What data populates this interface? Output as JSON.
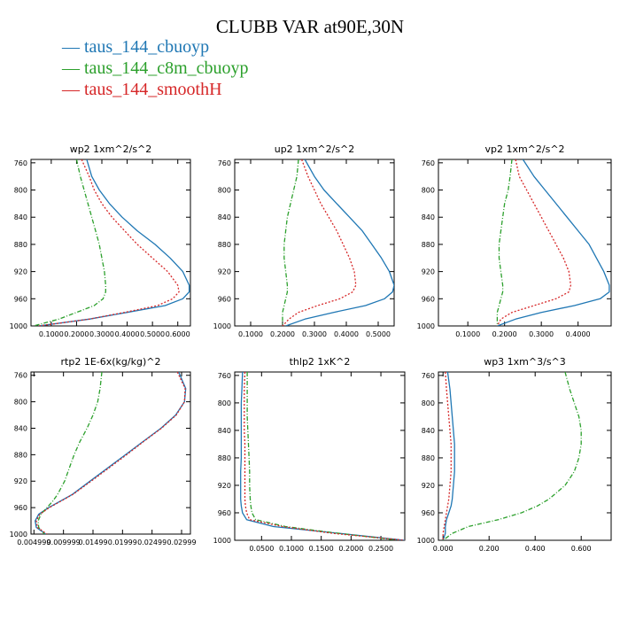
{
  "title": "CLUBB VAR at90E,30N",
  "legend": [
    {
      "label": "taus_144_cbuoyp",
      "color": "#1f77b4",
      "dash": "solid"
    },
    {
      "label": "taus_144_c8m_cbuoyp",
      "color": "#2ca02c",
      "dash": "dashdot"
    },
    {
      "label": "taus_144_smoothH",
      "color": "#d62728",
      "dash": "dot"
    }
  ],
  "chart_data": [
    {
      "type": "line",
      "title": "wp2  1xm^2/s^2",
      "xlim": [
        0.02,
        0.65
      ],
      "ylim": [
        1000,
        755
      ],
      "xticks": [
        "0.1000",
        "0.2000",
        "0.3000",
        "0.4000",
        "0.5000",
        "0.6000"
      ],
      "xtick_values": [
        0.1,
        0.2,
        0.3,
        0.4,
        0.5,
        0.6
      ],
      "yticks": [
        "760",
        "800",
        "840",
        "880",
        "920",
        "960",
        "1000"
      ],
      "ytick_values": [
        760,
        800,
        840,
        880,
        920,
        960,
        1000
      ],
      "y": [
        755,
        780,
        800,
        820,
        840,
        860,
        880,
        900,
        920,
        940,
        950,
        960,
        970,
        980,
        990,
        1000
      ],
      "series": [
        {
          "name": "taus_144_cbuoyp",
          "values": [
            0.24,
            0.26,
            0.29,
            0.33,
            0.38,
            0.44,
            0.51,
            0.57,
            0.62,
            0.645,
            0.645,
            0.62,
            0.55,
            0.4,
            0.25,
            0.05
          ]
        },
        {
          "name": "taus_144_c8m_cbuoyp",
          "values": [
            0.2,
            0.215,
            0.23,
            0.245,
            0.26,
            0.275,
            0.29,
            0.3,
            0.31,
            0.315,
            0.315,
            0.305,
            0.27,
            0.2,
            0.13,
            0.03
          ]
        },
        {
          "name": "taus_144_smoothH",
          "values": [
            0.22,
            0.25,
            0.27,
            0.3,
            0.34,
            0.39,
            0.44,
            0.5,
            0.56,
            0.6,
            0.605,
            0.58,
            0.52,
            0.39,
            0.25,
            0.05
          ]
        }
      ]
    },
    {
      "type": "line",
      "title": "up2  1xm^2/s^2",
      "xlim": [
        0.05,
        0.55
      ],
      "ylim": [
        1000,
        755
      ],
      "xticks": [
        "0.1000",
        "0.2000",
        "0.3000",
        "0.4000",
        "0.5000"
      ],
      "xtick_values": [
        0.1,
        0.2,
        0.3,
        0.4,
        0.5
      ],
      "yticks": [
        "760",
        "800",
        "840",
        "880",
        "920",
        "960",
        "1000"
      ],
      "ytick_values": [
        760,
        800,
        840,
        880,
        920,
        960,
        1000
      ],
      "y": [
        755,
        780,
        800,
        820,
        840,
        860,
        880,
        900,
        920,
        940,
        950,
        960,
        970,
        980,
        990,
        1000
      ],
      "series": [
        {
          "name": "taus_144_cbuoyp",
          "values": [
            0.27,
            0.3,
            0.33,
            0.37,
            0.41,
            0.45,
            0.48,
            0.51,
            0.535,
            0.55,
            0.545,
            0.52,
            0.46,
            0.36,
            0.27,
            0.21
          ]
        },
        {
          "name": "taus_144_c8m_cbuoyp",
          "values": [
            0.25,
            0.245,
            0.235,
            0.225,
            0.215,
            0.21,
            0.205,
            0.205,
            0.21,
            0.215,
            0.215,
            0.21,
            0.205,
            0.2,
            0.2,
            0.2
          ]
        },
        {
          "name": "taus_144_smoothH",
          "values": [
            0.26,
            0.28,
            0.3,
            0.32,
            0.345,
            0.37,
            0.39,
            0.41,
            0.425,
            0.43,
            0.42,
            0.38,
            0.31,
            0.25,
            0.22,
            0.2
          ]
        }
      ]
    },
    {
      "type": "line",
      "title": "vp2  1xm^2/s^2",
      "xlim": [
        0.02,
        0.49
      ],
      "ylim": [
        1000,
        755
      ],
      "xticks": [
        "0.1000",
        "0.2000",
        "0.3000",
        "0.4000"
      ],
      "xtick_values": [
        0.1,
        0.2,
        0.3,
        0.4
      ],
      "yticks": [
        "760",
        "800",
        "840",
        "880",
        "920",
        "960",
        "1000"
      ],
      "ytick_values": [
        760,
        800,
        840,
        880,
        920,
        960,
        1000
      ],
      "y": [
        755,
        780,
        800,
        820,
        840,
        860,
        880,
        900,
        920,
        940,
        950,
        960,
        970,
        980,
        990,
        1000
      ],
      "series": [
        {
          "name": "taus_144_cbuoyp",
          "values": [
            0.25,
            0.28,
            0.31,
            0.34,
            0.37,
            0.4,
            0.43,
            0.45,
            0.47,
            0.485,
            0.485,
            0.46,
            0.39,
            0.3,
            0.23,
            0.18
          ]
        },
        {
          "name": "taus_144_c8m_cbuoyp",
          "values": [
            0.22,
            0.215,
            0.21,
            0.2,
            0.195,
            0.19,
            0.185,
            0.185,
            0.19,
            0.195,
            0.195,
            0.19,
            0.185,
            0.18,
            0.18,
            0.18
          ]
        },
        {
          "name": "taus_144_smoothH",
          "values": [
            0.23,
            0.24,
            0.26,
            0.28,
            0.3,
            0.32,
            0.34,
            0.36,
            0.375,
            0.38,
            0.375,
            0.34,
            0.28,
            0.22,
            0.19,
            0.18
          ]
        }
      ]
    },
    {
      "type": "line",
      "title": "rtp2  1E-6x(kg/kg)^2",
      "xlim": [
        0.0045,
        0.0315
      ],
      "ylim": [
        1000,
        755
      ],
      "xticks": [
        "0.004999",
        "0.009999",
        "0.01499",
        "0.01999",
        "0.02499",
        "0.02999"
      ],
      "xtick_values": [
        0.005,
        0.01,
        0.015,
        0.02,
        0.025,
        0.03
      ],
      "yticks": [
        "760",
        "800",
        "840",
        "880",
        "920",
        "960",
        "1000"
      ],
      "ytick_values": [
        760,
        800,
        840,
        880,
        920,
        960,
        1000
      ],
      "y": [
        755,
        780,
        800,
        820,
        840,
        860,
        880,
        900,
        920,
        940,
        950,
        960,
        970,
        980,
        990,
        1000
      ],
      "series": [
        {
          "name": "taus_144_cbuoyp",
          "values": [
            0.0295,
            0.0307,
            0.0305,
            0.029,
            0.0265,
            0.0235,
            0.0205,
            0.0175,
            0.0145,
            0.0115,
            0.0095,
            0.0075,
            0.0058,
            0.0052,
            0.0054,
            0.007
          ]
        },
        {
          "name": "taus_144_c8m_cbuoyp",
          "values": [
            0.0165,
            0.0162,
            0.0158,
            0.015,
            0.014,
            0.0128,
            0.0118,
            0.011,
            0.0102,
            0.009,
            0.0082,
            0.0072,
            0.0062,
            0.0057,
            0.0058,
            0.0068
          ]
        },
        {
          "name": "taus_144_smoothH",
          "values": [
            0.0293,
            0.0306,
            0.0305,
            0.0291,
            0.0266,
            0.0236,
            0.0207,
            0.0177,
            0.0147,
            0.0116,
            0.0096,
            0.0076,
            0.006,
            0.0054,
            0.0056,
            0.0072
          ]
        }
      ]
    },
    {
      "type": "line",
      "title": "thlp2  1xK^2",
      "xlim": [
        0.005,
        0.29
      ],
      "ylim": [
        1000,
        755
      ],
      "xticks": [
        "0.0500",
        "0.1000",
        "0.1500",
        "0.2000",
        "0.2500"
      ],
      "xtick_values": [
        0.05,
        0.1,
        0.15,
        0.2,
        0.25
      ],
      "yticks": [
        "760",
        "800",
        "840",
        "880",
        "920",
        "960",
        "1000"
      ],
      "ytick_values": [
        760,
        800,
        840,
        880,
        920,
        960,
        1000
      ],
      "y": [
        755,
        780,
        800,
        820,
        840,
        860,
        880,
        900,
        920,
        940,
        950,
        960,
        970,
        980,
        990,
        1000
      ],
      "series": [
        {
          "name": "taus_144_cbuoyp",
          "values": [
            0.018,
            0.017,
            0.016,
            0.016,
            0.016,
            0.016,
            0.016,
            0.015,
            0.015,
            0.015,
            0.016,
            0.018,
            0.025,
            0.07,
            0.18,
            0.29
          ]
        },
        {
          "name": "taus_144_c8m_cbuoyp",
          "values": [
            0.026,
            0.026,
            0.026,
            0.026,
            0.027,
            0.028,
            0.029,
            0.03,
            0.03,
            0.031,
            0.032,
            0.034,
            0.04,
            0.09,
            0.18,
            0.28
          ]
        },
        {
          "name": "taus_144_smoothH",
          "values": [
            0.022,
            0.021,
            0.021,
            0.021,
            0.021,
            0.022,
            0.022,
            0.022,
            0.022,
            0.022,
            0.023,
            0.025,
            0.03,
            0.085,
            0.17,
            0.29
          ]
        }
      ]
    },
    {
      "type": "line",
      "title": "wp3  1xm^3/s^3",
      "xlim": [
        -0.02,
        0.73
      ],
      "ylim": [
        1000,
        755
      ],
      "xticks": [
        "0.000",
        "0.200",
        "0.400",
        "0.600"
      ],
      "xtick_values": [
        0.0,
        0.2,
        0.4,
        0.6
      ],
      "yticks": [
        "760",
        "800",
        "840",
        "880",
        "920",
        "960",
        "1000"
      ],
      "ytick_values": [
        760,
        800,
        840,
        880,
        920,
        960,
        1000
      ],
      "y": [
        755,
        780,
        800,
        820,
        840,
        860,
        880,
        900,
        920,
        940,
        950,
        960,
        970,
        980,
        990,
        1000
      ],
      "series": [
        {
          "name": "taus_144_cbuoyp",
          "values": [
            0.02,
            0.03,
            0.035,
            0.04,
            0.045,
            0.05,
            0.05,
            0.05,
            0.045,
            0.04,
            0.035,
            0.025,
            0.015,
            0.01,
            0.01,
            0.0
          ]
        },
        {
          "name": "taus_144_c8m_cbuoyp",
          "values": [
            0.53,
            0.55,
            0.57,
            0.59,
            0.6,
            0.6,
            0.59,
            0.57,
            0.53,
            0.46,
            0.41,
            0.34,
            0.24,
            0.11,
            0.04,
            0.0
          ]
        },
        {
          "name": "taus_144_smoothH",
          "values": [
            0.01,
            0.015,
            0.02,
            0.025,
            0.03,
            0.035,
            0.035,
            0.035,
            0.03,
            0.025,
            0.02,
            0.015,
            0.01,
            0.005,
            0.0,
            0.0
          ]
        }
      ]
    }
  ]
}
